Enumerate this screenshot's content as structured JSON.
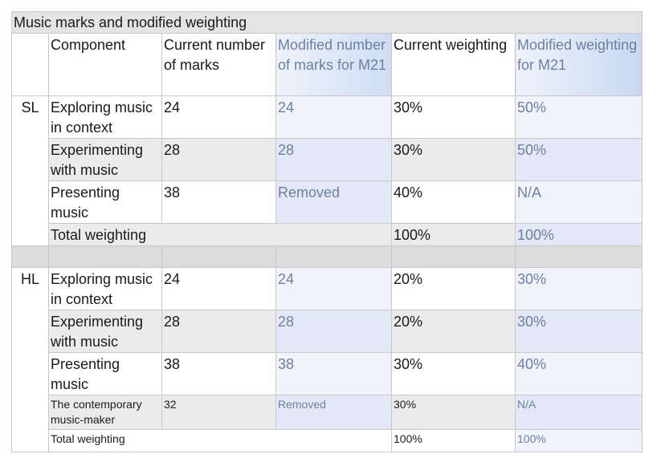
{
  "title": "Music marks and modified weighting",
  "headers": {
    "component": "Component",
    "current_marks": "Current number of marks",
    "modified_marks": "Modified number of marks for M21",
    "current_weighting": "Current weighting",
    "modified_weighting": "Modified weighting for M21"
  },
  "sl": {
    "label": "SL",
    "rows": [
      {
        "component": "Exploring music in context",
        "current_marks": "24",
        "modified_marks": "24",
        "current_weighting": "30%",
        "modified_weighting": "50%"
      },
      {
        "component": "Experimenting with music",
        "current_marks": "28",
        "modified_marks": "28",
        "current_weighting": "30%",
        "modified_weighting": "50%"
      },
      {
        "component": "Presenting music",
        "current_marks": "38",
        "modified_marks": "Removed",
        "current_weighting": "40%",
        "modified_weighting": "N/A"
      }
    ],
    "total": {
      "label": "Total weighting",
      "current_weighting": "100%",
      "modified_weighting": "100%"
    }
  },
  "hl": {
    "label": "HL",
    "rows": [
      {
        "component": "Exploring music in context",
        "current_marks": "24",
        "modified_marks": "24",
        "current_weighting": "20%",
        "modified_weighting": "30%"
      },
      {
        "component": "Experimenting with music",
        "current_marks": "28",
        "modified_marks": "28",
        "current_weighting": "20%",
        "modified_weighting": "30%"
      },
      {
        "component": "Presenting music",
        "current_marks": "38",
        "modified_marks": "38",
        "current_weighting": "30%",
        "modified_weighting": "40%"
      },
      {
        "component": "The contemporary music-maker",
        "current_marks": "32",
        "modified_marks": "Removed",
        "current_weighting": "30%",
        "modified_weighting": "N/A"
      }
    ],
    "total": {
      "label": "Total weighting",
      "current_weighting": "100%",
      "modified_weighting": "100%"
    }
  }
}
